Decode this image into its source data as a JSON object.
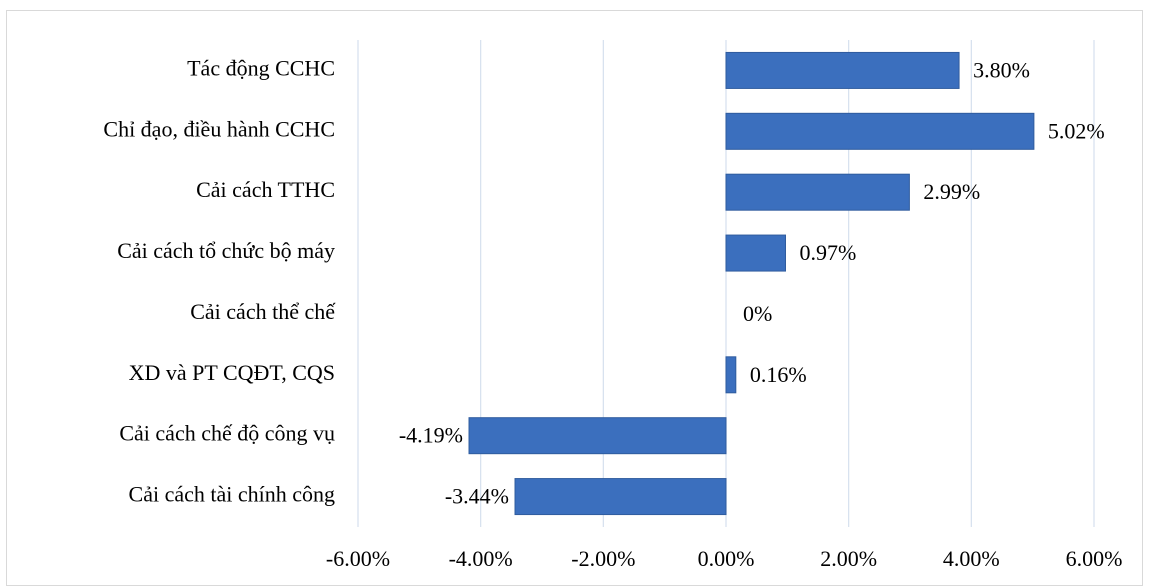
{
  "chart_data": {
    "type": "hbar",
    "categories": [
      "Tác động CCHC",
      "Chỉ đạo, điều hành CCHC",
      "Cải cách TTHC",
      "Cải cách tổ chức bộ máy",
      "Cải cách thể chế",
      "XD và PT CQĐT, CQS",
      "Cải cách chế độ công vụ",
      "Cải cách tài chính công"
    ],
    "values": [
      3.8,
      5.02,
      2.99,
      0.97,
      0,
      0.16,
      -4.19,
      -3.44
    ],
    "value_labels": [
      "3.80%",
      "5.02%",
      "2.99%",
      "0.97%",
      "0%",
      "0.16%",
      "-4.19%",
      "-3.44%"
    ],
    "color": "#3b6fbe",
    "xlim": [
      -6,
      6
    ],
    "xticks": [
      {
        "value": -6,
        "label": "-6.00%"
      },
      {
        "value": -4,
        "label": "-4.00%"
      },
      {
        "value": -2,
        "label": "-2.00%"
      },
      {
        "value": 0,
        "label": "0.00%"
      },
      {
        "value": 2,
        "label": "2.00%"
      },
      {
        "value": 4,
        "label": "4.00%"
      },
      {
        "value": 6,
        "label": "6.00%"
      }
    ],
    "grid": true
  }
}
